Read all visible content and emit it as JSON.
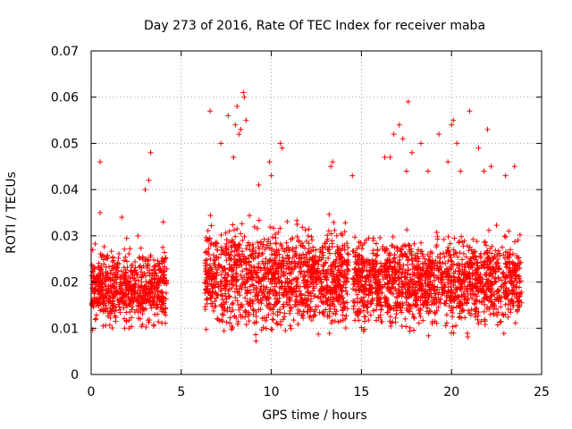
{
  "chart_data": {
    "type": "scatter",
    "title": "Day 273 of 2016, Rate Of TEC Index for receiver maba",
    "xlabel": "GPS time / hours",
    "ylabel": "ROTI / TECUs",
    "xlim": [
      0,
      25
    ],
    "ylim": [
      0,
      0.07
    ],
    "xticks": [
      "0",
      "5",
      "10",
      "15",
      "20",
      "25"
    ],
    "yticks": [
      "0",
      "0.01",
      "0.02",
      "0.03",
      "0.04",
      "0.05",
      "0.06",
      "0.07"
    ],
    "grid": true,
    "marker": "+",
    "series": [
      {
        "name": "ROTI",
        "color": "#ff0000",
        "x": [
          0.1,
          0.3,
          0.5,
          0.6,
          0.8,
          1.0,
          1.2,
          1.4,
          1.6,
          1.8,
          2.0,
          2.2,
          2.4,
          2.6,
          2.8,
          3.0,
          3.1,
          3.3,
          3.5,
          3.7,
          3.9,
          4.1,
          6.4,
          6.6,
          6.8,
          7.0,
          7.2,
          7.4,
          7.6,
          7.8,
          8.0,
          8.2,
          8.4,
          8.6,
          8.8,
          9.0,
          9.2,
          9.4,
          9.6,
          9.8,
          10.0,
          10.2,
          10.4,
          10.6,
          10.8,
          11.0,
          11.2,
          11.4,
          11.6,
          11.8,
          12.0,
          12.2,
          12.4,
          12.6,
          12.8,
          13.0,
          13.2,
          13.4,
          13.6,
          13.8,
          14.0,
          14.2,
          14.6,
          14.8,
          15.0,
          15.2,
          15.4,
          15.6,
          15.8,
          16.0,
          16.2,
          16.4,
          16.6,
          16.8,
          17.0,
          17.2,
          17.4,
          17.6,
          17.8,
          18.0,
          18.2,
          18.4,
          18.6,
          18.8,
          19.0,
          19.2,
          19.4,
          19.6,
          19.8,
          20.0,
          20.2,
          20.4,
          20.6,
          20.8,
          21.0,
          21.2,
          21.4,
          21.6,
          21.8,
          22.0,
          22.2,
          22.4,
          22.6,
          22.8,
          23.0,
          23.2,
          23.4,
          23.6,
          23.8,
          0.5,
          0.5,
          1.7,
          2.6,
          3.0,
          3.2,
          3.3,
          4.0,
          6.6,
          7.2,
          7.6,
          7.9,
          8.0,
          8.1,
          8.2,
          8.3,
          8.45,
          8.5,
          8.6,
          9.3,
          9.9,
          10.0,
          10.5,
          10.6,
          13.3,
          13.4,
          14.5,
          16.3,
          16.6,
          16.8,
          17.1,
          17.3,
          17.5,
          17.6,
          17.8,
          18.3,
          18.7,
          19.3,
          19.8,
          20.0,
          20.1,
          20.3,
          20.5,
          21.0,
          21.5,
          21.8,
          22.0,
          22.2,
          23.0,
          23.5
        ],
        "y": [
          0.018,
          0.015,
          0.022,
          0.017,
          0.019,
          0.016,
          0.021,
          0.018,
          0.014,
          0.017,
          0.02,
          0.016,
          0.018,
          0.015,
          0.021,
          0.019,
          0.023,
          0.017,
          0.02,
          0.018,
          0.022,
          0.025,
          0.02,
          0.018,
          0.024,
          0.022,
          0.026,
          0.023,
          0.027,
          0.025,
          0.028,
          0.026,
          0.029,
          0.024,
          0.027,
          0.025,
          0.022,
          0.023,
          0.021,
          0.024,
          0.022,
          0.02,
          0.021,
          0.019,
          0.02,
          0.022,
          0.018,
          0.017,
          0.019,
          0.016,
          0.018,
          0.017,
          0.02,
          0.022,
          0.019,
          0.021,
          0.018,
          0.02,
          0.017,
          0.019,
          0.021,
          0.02,
          0.02,
          0.019,
          0.022,
          0.021,
          0.018,
          0.024,
          0.02,
          0.022,
          0.019,
          0.023,
          0.021,
          0.025,
          0.024,
          0.027,
          0.026,
          0.028,
          0.025,
          0.023,
          0.021,
          0.024,
          0.022,
          0.02,
          0.019,
          0.021,
          0.02,
          0.022,
          0.018,
          0.021,
          0.02,
          0.023,
          0.019,
          0.021,
          0.02,
          0.022,
          0.024,
          0.021,
          0.019,
          0.023,
          0.022,
          0.02,
          0.021,
          0.019,
          0.02,
          0.023,
          0.018,
          0.019,
          0.017,
          0.046,
          0.035,
          0.034,
          0.03,
          0.04,
          0.042,
          0.048,
          0.033,
          0.057,
          0.05,
          0.056,
          0.047,
          0.054,
          0.058,
          0.052,
          0.053,
          0.061,
          0.06,
          0.055,
          0.041,
          0.046,
          0.043,
          0.05,
          0.049,
          0.045,
          0.046,
          0.043,
          0.047,
          0.047,
          0.052,
          0.054,
          0.051,
          0.044,
          0.059,
          0.048,
          0.05,
          0.044,
          0.052,
          0.046,
          0.054,
          0.055,
          0.05,
          0.044,
          0.057,
          0.049,
          0.044,
          0.053,
          0.045,
          0.043,
          0.045
        ],
        "band": [
          {
            "x0": 0.0,
            "x1": 4.2,
            "ymin": 0.008,
            "ymax": 0.03
          },
          {
            "x0": 6.3,
            "x1": 14.3,
            "ymin": 0.006,
            "ymax": 0.036
          },
          {
            "x0": 14.5,
            "x1": 23.9,
            "ymin": 0.007,
            "ymax": 0.033
          }
        ]
      }
    ]
  }
}
